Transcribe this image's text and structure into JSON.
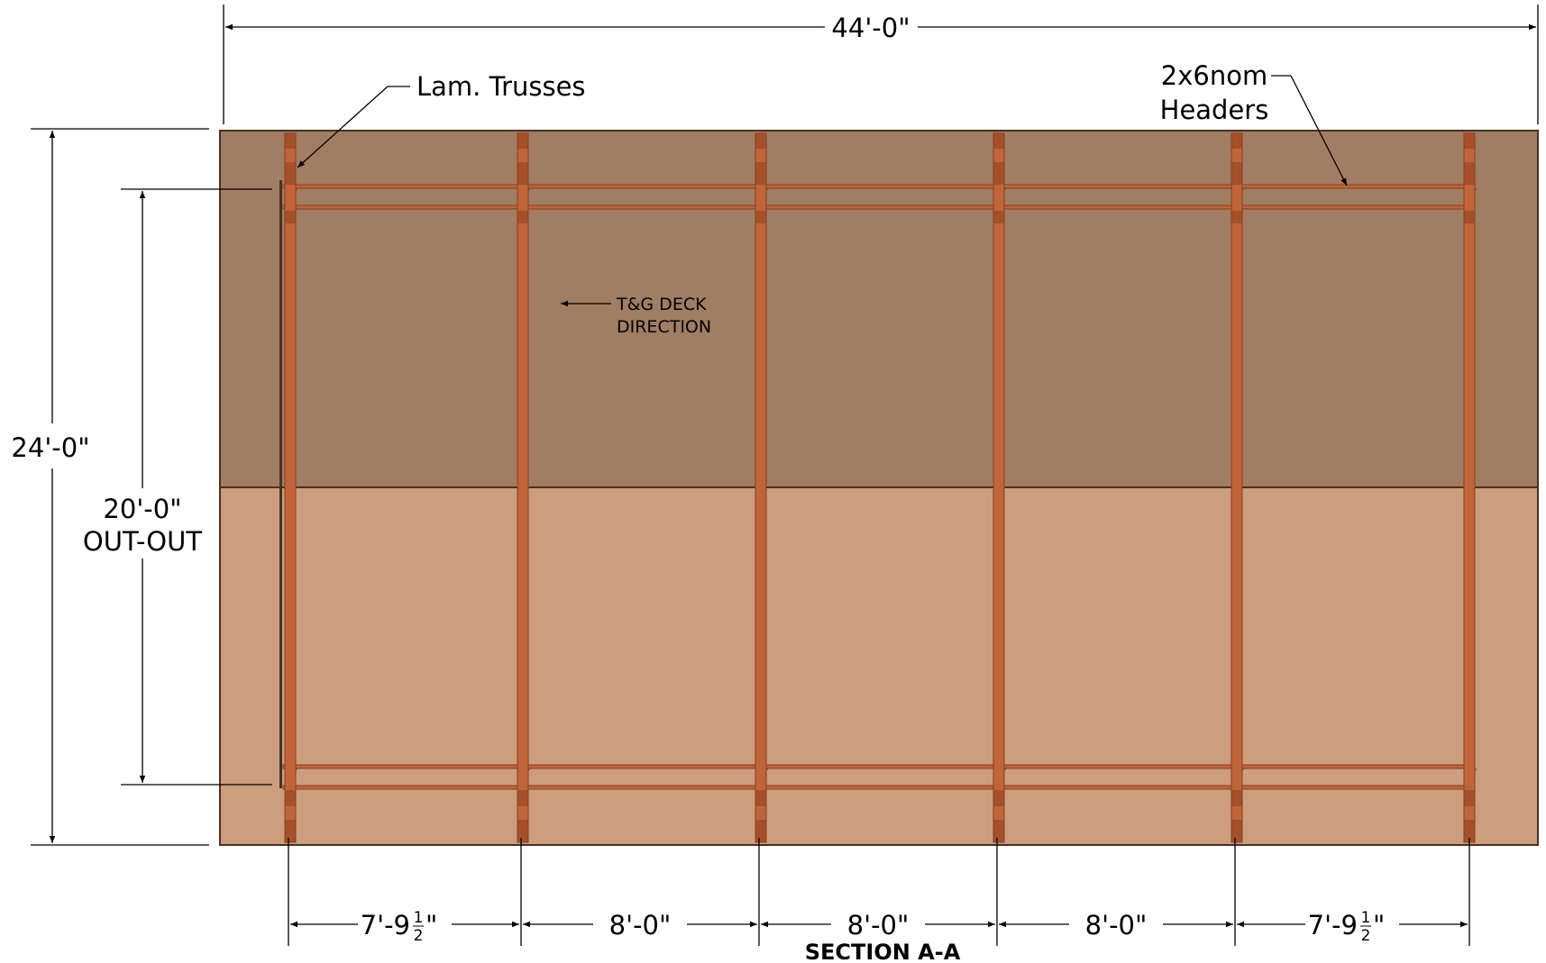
{
  "title": "SECTION A-A",
  "colors": {
    "roof_dark": "#a17d63",
    "roof_light": "#cc9e7e",
    "truss": "#c0643a",
    "truss_dark": "#8a3f1f",
    "outline": "#4a3020"
  },
  "dimensions": {
    "overall_width": "44'-0\"",
    "overall_depth": "24'-0\"",
    "out_out_value": "20'-0\"",
    "out_out_label": "OUT-OUT",
    "bays": [
      {
        "main": "7'-9",
        "num": "1",
        "den": "2",
        "inch": "\""
      },
      {
        "main": "8'-0\"",
        "num": "",
        "den": "",
        "inch": ""
      },
      {
        "main": "8'-0\"",
        "num": "",
        "den": "",
        "inch": ""
      },
      {
        "main": "8'-0\"",
        "num": "",
        "den": "",
        "inch": ""
      },
      {
        "main": "7'-9",
        "num": "1",
        "den": "2",
        "inch": "\""
      }
    ]
  },
  "callouts": {
    "trusses": "Lam. Trusses",
    "headers_line1": "2x6nom",
    "headers_line2": "Headers",
    "deck_line1": "T&G DECK",
    "deck_line2": "DIRECTION"
  }
}
